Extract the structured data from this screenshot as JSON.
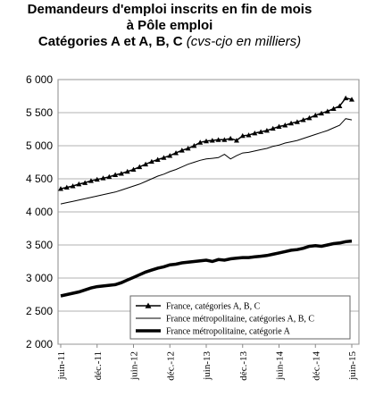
{
  "chart_data": {
    "type": "line",
    "title": [
      "Demandeurs d'emploi inscrits en fin de mois",
      "à Pôle emploi"
    ],
    "subtitle": "Catégories A et A, B, C",
    "subtitle_note": "(cvs-cjo en milliers)",
    "categories": [
      "juin-11",
      null,
      null,
      null,
      null,
      null,
      "déc.-11",
      null,
      null,
      null,
      null,
      null,
      "juin-12",
      null,
      null,
      null,
      null,
      null,
      "déc.-12",
      null,
      null,
      null,
      null,
      null,
      "juin-13",
      null,
      null,
      null,
      null,
      null,
      "déc.-13",
      null,
      null,
      null,
      null,
      null,
      "juin-14",
      null,
      null,
      null,
      null,
      null,
      "déc.-14",
      null,
      null,
      null,
      null,
      null,
      "juin-15"
    ],
    "series": [
      {
        "name": "France, catégories A, B, C",
        "color": "#000000",
        "width": 1.5,
        "marker": "triangle",
        "values": [
          4350,
          4370,
          4390,
          4420,
          4440,
          4470,
          4490,
          4510,
          4530,
          4560,
          4580,
          4610,
          4640,
          4680,
          4720,
          4760,
          4790,
          4820,
          4850,
          4890,
          4930,
          4960,
          5000,
          5050,
          5070,
          5080,
          5090,
          5090,
          5110,
          5080,
          5150,
          5160,
          5190,
          5210,
          5230,
          5260,
          5290,
          5310,
          5340,
          5360,
          5390,
          5420,
          5460,
          5490,
          5520,
          5560,
          5600,
          5720,
          5700
        ]
      },
      {
        "name": "France métropolitaine, catégories A, B, C",
        "color": "#000000",
        "width": 1,
        "values": [
          4120,
          4140,
          4160,
          4180,
          4200,
          4220,
          4240,
          4260,
          4280,
          4300,
          4330,
          4360,
          4390,
          4420,
          4460,
          4500,
          4540,
          4570,
          4610,
          4640,
          4680,
          4720,
          4750,
          4780,
          4800,
          4810,
          4820,
          4870,
          4800,
          4850,
          4890,
          4900,
          4920,
          4940,
          4960,
          4990,
          5010,
          5040,
          5060,
          5080,
          5110,
          5140,
          5170,
          5200,
          5230,
          5270,
          5310,
          5410,
          5390
        ]
      },
      {
        "name": "France métropolitaine, catégorie A",
        "color": "#000000",
        "width": 3.5,
        "values": [
          2730,
          2750,
          2770,
          2790,
          2820,
          2850,
          2870,
          2880,
          2890,
          2900,
          2930,
          2970,
          3010,
          3050,
          3090,
          3120,
          3150,
          3170,
          3200,
          3210,
          3230,
          3240,
          3250,
          3260,
          3270,
          3250,
          3280,
          3270,
          3290,
          3300,
          3310,
          3310,
          3320,
          3330,
          3340,
          3360,
          3380,
          3400,
          3420,
          3430,
          3450,
          3480,
          3490,
          3480,
          3500,
          3520,
          3530,
          3550,
          3560
        ]
      }
    ],
    "ylim": [
      2000,
      6000
    ],
    "yticks": [
      {
        "value": 2000,
        "label": "2 000"
      },
      {
        "value": 2500,
        "label": "2 500"
      },
      {
        "value": 3000,
        "label": "3 000"
      },
      {
        "value": 3500,
        "label": "3 500"
      },
      {
        "value": 4000,
        "label": "4 000"
      },
      {
        "value": 4500,
        "label": "4 500"
      },
      {
        "value": 5000,
        "label": "5 000"
      },
      {
        "value": 5500,
        "label": "5 500"
      },
      {
        "value": 6000,
        "label": "6 000"
      }
    ],
    "grid": true,
    "legend": "lower right"
  }
}
